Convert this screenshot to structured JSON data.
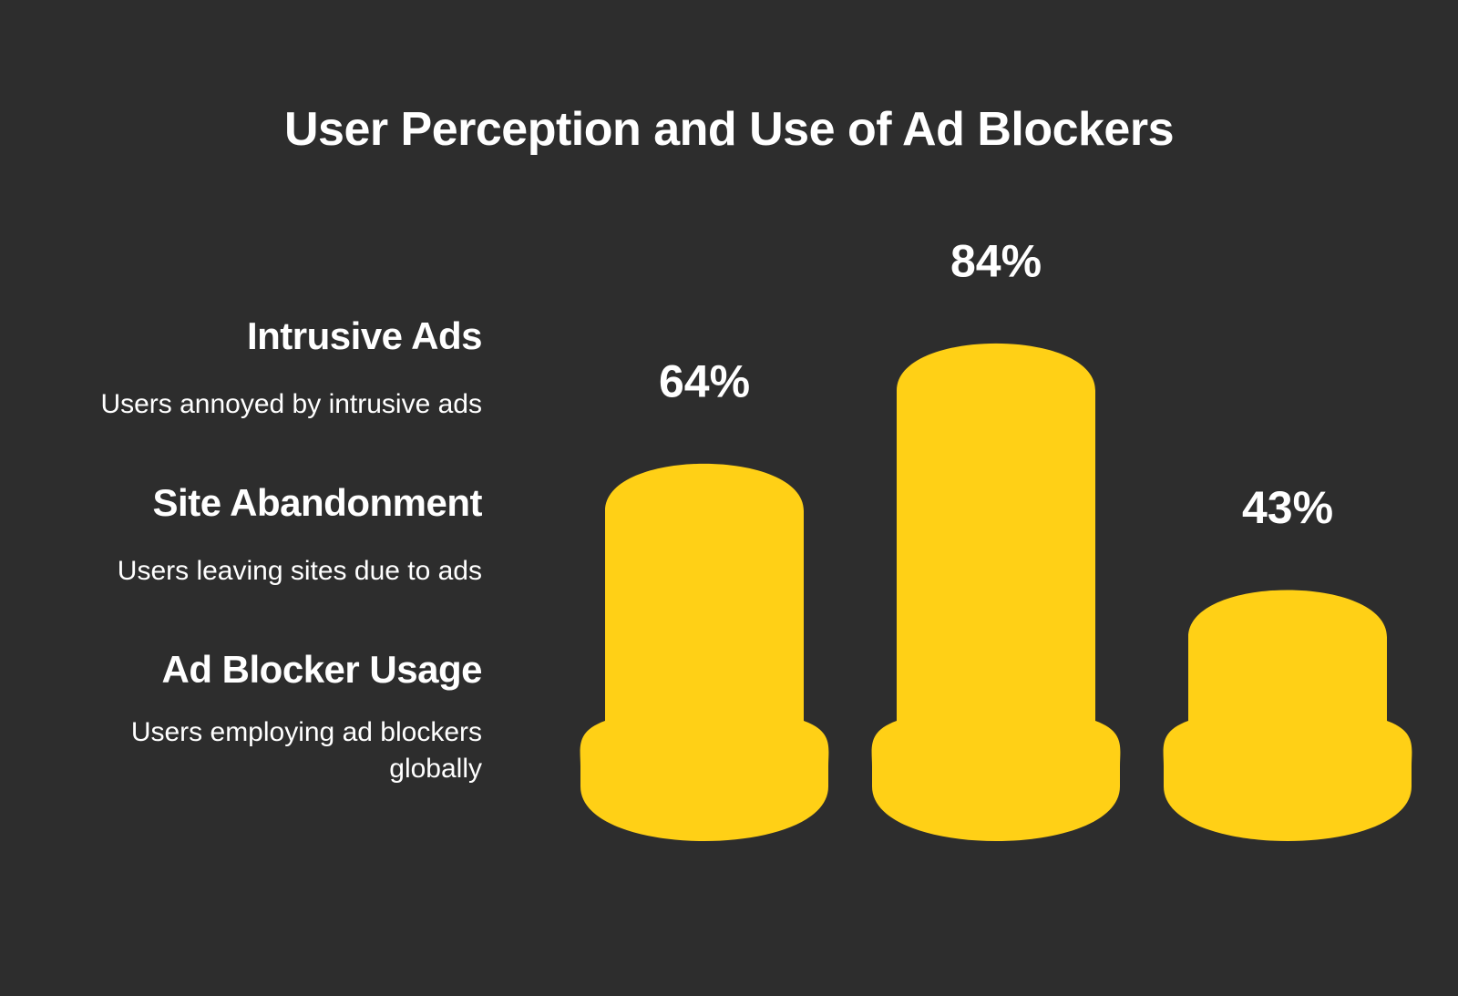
{
  "chart_data": {
    "type": "bar",
    "title": "User Perception and Use of Ad Blockers",
    "categories": [
      "Intrusive Ads",
      "Site Abandonment",
      "Ad Blocker Usage"
    ],
    "descriptions": [
      "Users annoyed by intrusive ads",
      "Users leaving sites due to ads",
      "Users employing ad blockers globally"
    ],
    "values": [
      64,
      84,
      43
    ],
    "value_labels": [
      "64%",
      "84%",
      "43%"
    ],
    "ylim": [
      0,
      100
    ],
    "grid": false,
    "legend_placement": "left",
    "colors": {
      "background": "#2d2d2d",
      "bar": "#ffd016",
      "text": "#ffffff"
    }
  }
}
